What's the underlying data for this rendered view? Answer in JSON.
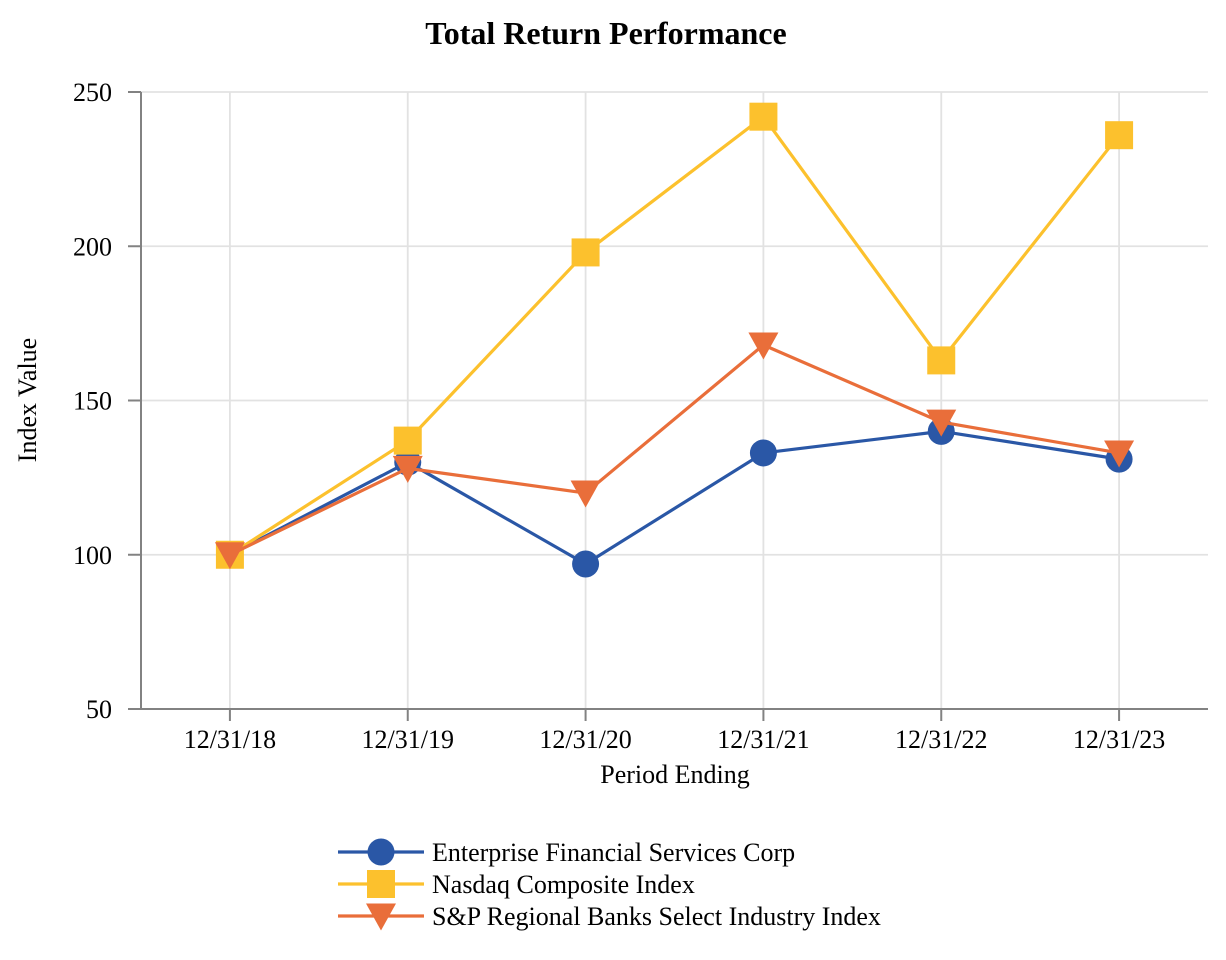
{
  "chart_data": {
    "type": "line",
    "title": "Total Return Performance",
    "xlabel": "Period Ending",
    "ylabel": "Index Value",
    "categories": [
      "12/31/18",
      "12/31/19",
      "12/31/20",
      "12/31/21",
      "12/31/22",
      "12/31/23"
    ],
    "series": [
      {
        "name": "Enterprise Financial Services Corp",
        "marker": "circle",
        "color": "#2A57A6",
        "values": [
          100,
          130,
          97,
          133,
          140,
          131
        ]
      },
      {
        "name": "Nasdaq Composite Index",
        "marker": "square",
        "color": "#FCC12D",
        "values": [
          100,
          137,
          198,
          242,
          163,
          236
        ]
      },
      {
        "name": "S&P Regional Banks Select Industry Index",
        "marker": "triangle-down",
        "color": "#E96E3A",
        "values": [
          100,
          128,
          120,
          168,
          143,
          133
        ]
      }
    ],
    "ylim": [
      50,
      250
    ],
    "yticks": [
      50,
      100,
      150,
      200,
      250
    ],
    "grid": true,
    "legend_position": "bottom",
    "colors": {
      "axis": "#828282",
      "gridline": "#E2E2E2",
      "background": "#FFFFFF",
      "text": "#000000"
    }
  }
}
